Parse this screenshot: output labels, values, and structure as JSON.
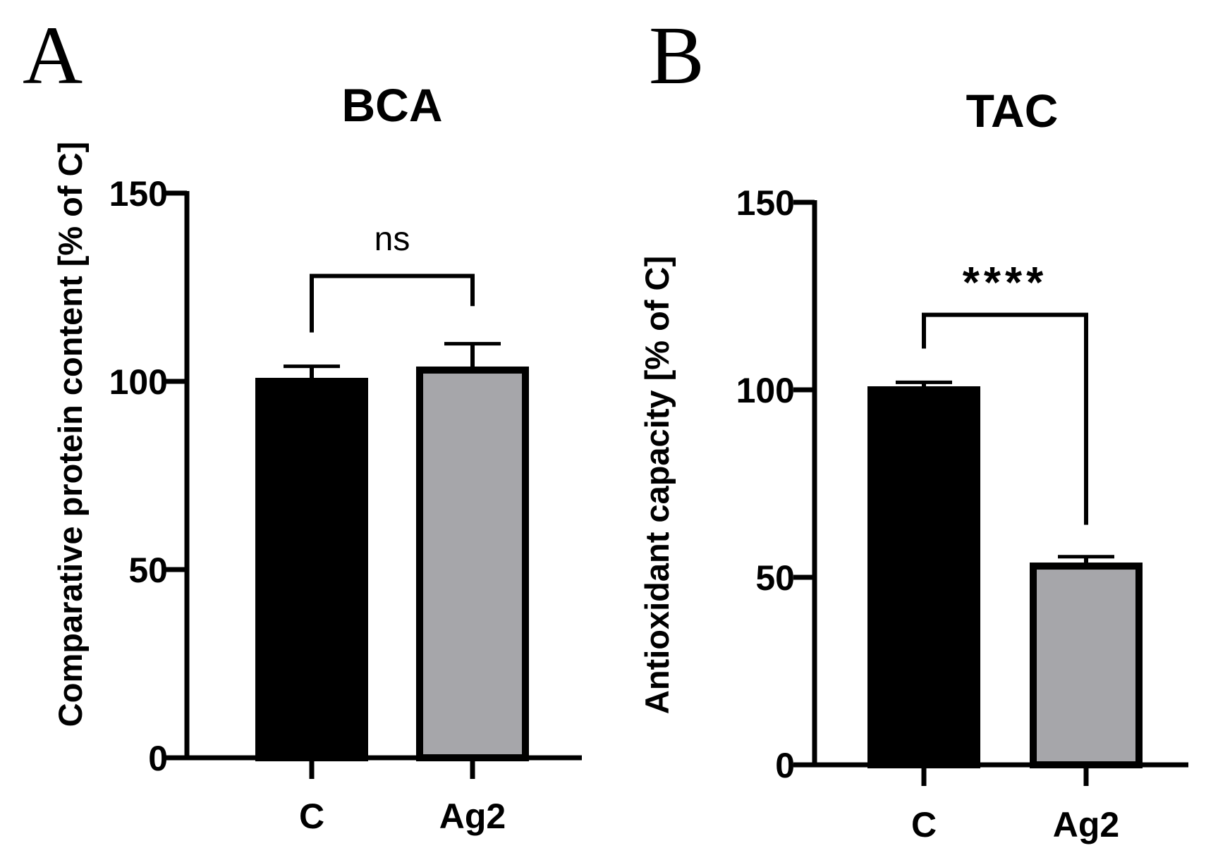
{
  "chart_data": [
    {
      "panel_label": "A",
      "type": "bar",
      "title": "BCA",
      "ylabel": "Comparative protein content [% of C]",
      "xlabel": "",
      "categories": [
        "C",
        "Ag2"
      ],
      "values": [
        100,
        103
      ],
      "errors": [
        4,
        7
      ],
      "colors": [
        "#000000",
        "#a6a6aa"
      ],
      "ylim": [
        0,
        150
      ],
      "yticks": [
        0,
        50,
        100,
        150
      ],
      "ytick_labels": [
        "0",
        "50",
        "100",
        "150"
      ],
      "significance": {
        "label": "ns",
        "bracket_y": 128,
        "left_leg_end": 113,
        "right_leg_end": 120
      }
    },
    {
      "panel_label": "B",
      "type": "bar",
      "title": "TAC",
      "ylabel": "Antioxidant capacity [% of C]",
      "xlabel": "",
      "categories": [
        "C",
        "Ag2"
      ],
      "values": [
        100,
        53
      ],
      "errors": [
        2,
        2.5
      ],
      "colors": [
        "#000000",
        "#a6a6aa"
      ],
      "ylim": [
        0,
        150
      ],
      "yticks": [
        0,
        50,
        100,
        150
      ],
      "ytick_labels": [
        "0",
        "50",
        "100",
        "150"
      ],
      "significance": {
        "label": "****",
        "bracket_y": 120,
        "left_leg_end": 111,
        "right_leg_end": 64
      }
    }
  ]
}
